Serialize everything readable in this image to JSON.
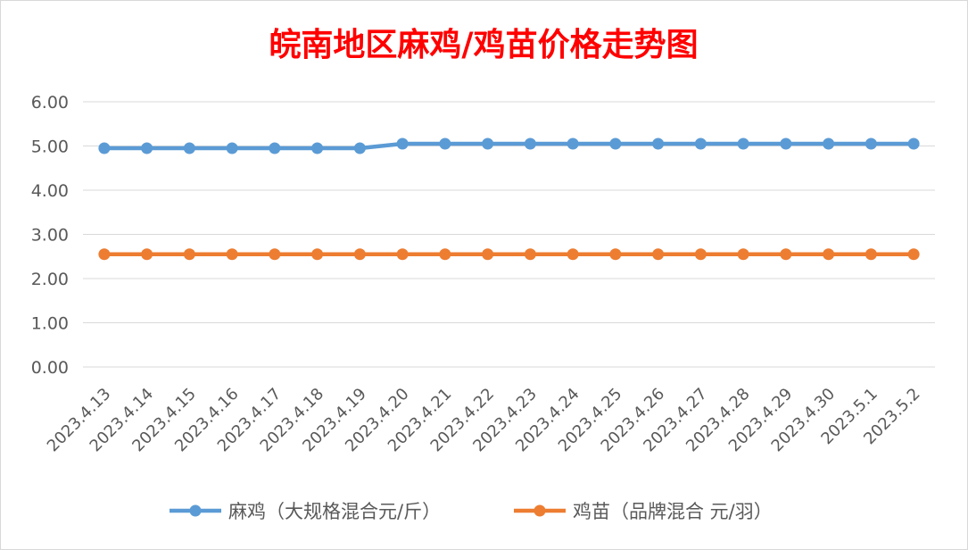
{
  "chart_data": {
    "type": "line",
    "title": "皖南地区麻鸡/鸡苗价格走势图",
    "title_color": "#ff0000",
    "categories": [
      "2023.4.13",
      "2023.4.14",
      "2023.4.15",
      "2023.4.16",
      "2023.4.17",
      "2023.4.18",
      "2023.4.19",
      "2023.4.20",
      "2023.4.21",
      "2023.4.22",
      "2023.4.23",
      "2023.4.24",
      "2023.4.25",
      "2023.4.26",
      "2023.4.27",
      "2023.4.28",
      "2023.4.29",
      "2023.4.30",
      "2023.5.1",
      "2023.5.2"
    ],
    "ylim": [
      0,
      6
    ],
    "yticks": [
      "0.00",
      "1.00",
      "2.00",
      "3.00",
      "4.00",
      "5.00",
      "6.00"
    ],
    "grid": true,
    "legend_position": "bottom",
    "series": [
      {
        "name": "麻鸡（大规格混合元/斤）",
        "color": "#5b9bd5",
        "values": [
          4.95,
          4.95,
          4.95,
          4.95,
          4.95,
          4.95,
          4.95,
          5.05,
          5.05,
          5.05,
          5.05,
          5.05,
          5.05,
          5.05,
          5.05,
          5.05,
          5.05,
          5.05,
          5.05,
          5.05
        ]
      },
      {
        "name": "鸡苗（品牌混合 元/羽）",
        "color": "#ed7d31",
        "values": [
          2.55,
          2.55,
          2.55,
          2.55,
          2.55,
          2.55,
          2.55,
          2.55,
          2.55,
          2.55,
          2.55,
          2.55,
          2.55,
          2.55,
          2.55,
          2.55,
          2.55,
          2.55,
          2.55,
          2.55
        ]
      }
    ]
  }
}
